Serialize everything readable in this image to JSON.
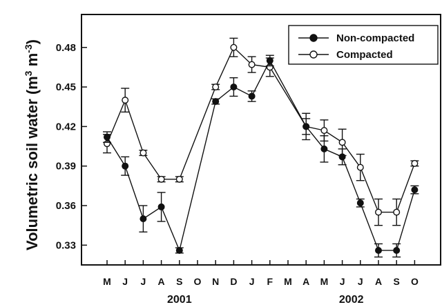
{
  "chart_data": {
    "type": "line",
    "ylabel_main": "Volumetric soil water (m",
    "ylabel_sup1": "3",
    "ylabel_mid": " m",
    "ylabel_sup2": "-3",
    "ylabel_end": ")",
    "ylim": [
      0.315,
      0.505
    ],
    "yticks": [
      0.33,
      0.36,
      0.39,
      0.42,
      0.45,
      0.48
    ],
    "ytick_labels": [
      "0.33",
      "0.36",
      "0.39",
      "0.42",
      "0.45",
      "0.48"
    ],
    "months": [
      "M",
      "J",
      "J",
      "A",
      "S",
      "O",
      "N",
      "D",
      "J",
      "F",
      "M",
      "A",
      "M",
      "J",
      "J",
      "A",
      "S",
      "O"
    ],
    "years": [
      {
        "label": "2001",
        "center_index": 4
      },
      {
        "label": "2002",
        "center_index": 13.5
      }
    ],
    "legend_position": "top-right",
    "grid": false,
    "series": [
      {
        "name": "Non-compacted",
        "marker": "filled-circle",
        "color": "#111111",
        "points": [
          {
            "x": 0,
            "y": 0.412,
            "err": 0.004
          },
          {
            "x": 1,
            "y": 0.39,
            "err": 0.007
          },
          {
            "x": 2,
            "y": 0.35,
            "err": 0.01
          },
          {
            "x": 3,
            "y": 0.359,
            "err": 0.011
          },
          {
            "x": 4,
            "y": 0.326,
            "err": 0.002
          },
          {
            "x": 6,
            "y": 0.439,
            "err": 0.002
          },
          {
            "x": 7,
            "y": 0.45,
            "err": 0.007
          },
          {
            "x": 8,
            "y": 0.443,
            "err": 0.004
          },
          {
            "x": 9,
            "y": 0.47,
            "err": 0.004
          },
          {
            "x": 11,
            "y": 0.42,
            "err": 0.01
          },
          {
            "x": 12,
            "y": 0.403,
            "err": 0.01
          },
          {
            "x": 13,
            "y": 0.397,
            "err": 0.006
          },
          {
            "x": 14,
            "y": 0.362,
            "err": 0.003
          },
          {
            "x": 15,
            "y": 0.326,
            "err": 0.005
          },
          {
            "x": 16,
            "y": 0.326,
            "err": 0.005
          },
          {
            "x": 17,
            "y": 0.372,
            "err": 0.003
          }
        ]
      },
      {
        "name": "Compacted",
        "marker": "open-circle",
        "color": "#111111",
        "points": [
          {
            "x": 0,
            "y": 0.407,
            "err": 0.007
          },
          {
            "x": 1,
            "y": 0.44,
            "err": 0.009
          },
          {
            "x": 2,
            "y": 0.4,
            "err": 0.002
          },
          {
            "x": 3,
            "y": 0.38,
            "err": 0.002
          },
          {
            "x": 4,
            "y": 0.38,
            "err": 0.002
          },
          {
            "x": 6,
            "y": 0.45,
            "err": 0.002
          },
          {
            "x": 7,
            "y": 0.48,
            "err": 0.007
          },
          {
            "x": 8,
            "y": 0.467,
            "err": 0.006
          },
          {
            "x": 9,
            "y": 0.465,
            "err": 0.007
          },
          {
            "x": 11,
            "y": 0.42,
            "err": 0.006
          },
          {
            "x": 12,
            "y": 0.417,
            "err": 0.008
          },
          {
            "x": 13,
            "y": 0.408,
            "err": 0.01
          },
          {
            "x": 14,
            "y": 0.389,
            "err": 0.01
          },
          {
            "x": 15,
            "y": 0.355,
            "err": 0.01
          },
          {
            "x": 16,
            "y": 0.355,
            "err": 0.01
          },
          {
            "x": 17,
            "y": 0.392,
            "err": 0.002
          }
        ]
      }
    ]
  }
}
